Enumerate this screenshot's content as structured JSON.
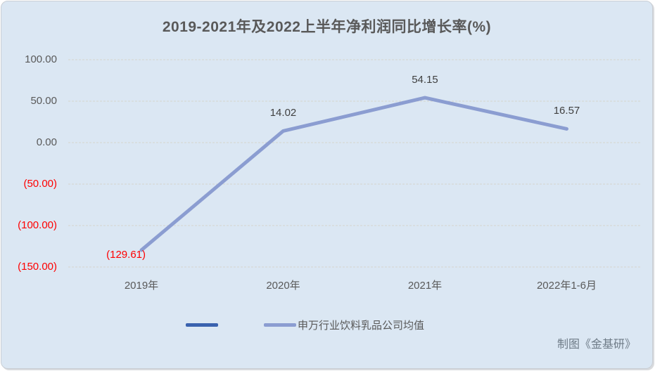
{
  "chart_data": {
    "type": "line",
    "title": "2019-2021年及2022上半年净利润同比增长率(%)",
    "categories": [
      "2019年",
      "2020年",
      "2021年",
      "2022年1-6月"
    ],
    "series": [
      {
        "name": "",
        "color": "#3a62ae",
        "values": []
      },
      {
        "name": "申万行业饮料乳品公司均值",
        "color": "#8b9dd1",
        "values": [
          -129.61,
          14.02,
          54.15,
          16.57
        ]
      }
    ],
    "data_labels": [
      "(129.61)",
      "14.02",
      "54.15",
      "16.57"
    ],
    "y_ticks": [
      {
        "label": "100.00",
        "value": 100,
        "negative": false
      },
      {
        "label": "50.00",
        "value": 50,
        "negative": false
      },
      {
        "label": "0.00",
        "value": 0,
        "negative": false
      },
      {
        "label": "(50.00)",
        "value": -50,
        "negative": true
      },
      {
        "label": "(100.00)",
        "value": -100,
        "negative": true
      },
      {
        "label": "(150.00)",
        "value": -150,
        "negative": true
      }
    ],
    "ylim": [
      -150,
      100
    ],
    "grid": true,
    "legend_position": "bottom",
    "negative_label_color": "#ff0000",
    "data_label_color": "#404040",
    "axis_text_color": "#595959",
    "gridline_color": "#d5d1c8",
    "background_color": "#dbe7f3"
  },
  "footer": {
    "credit": "制图《金基研》"
  }
}
